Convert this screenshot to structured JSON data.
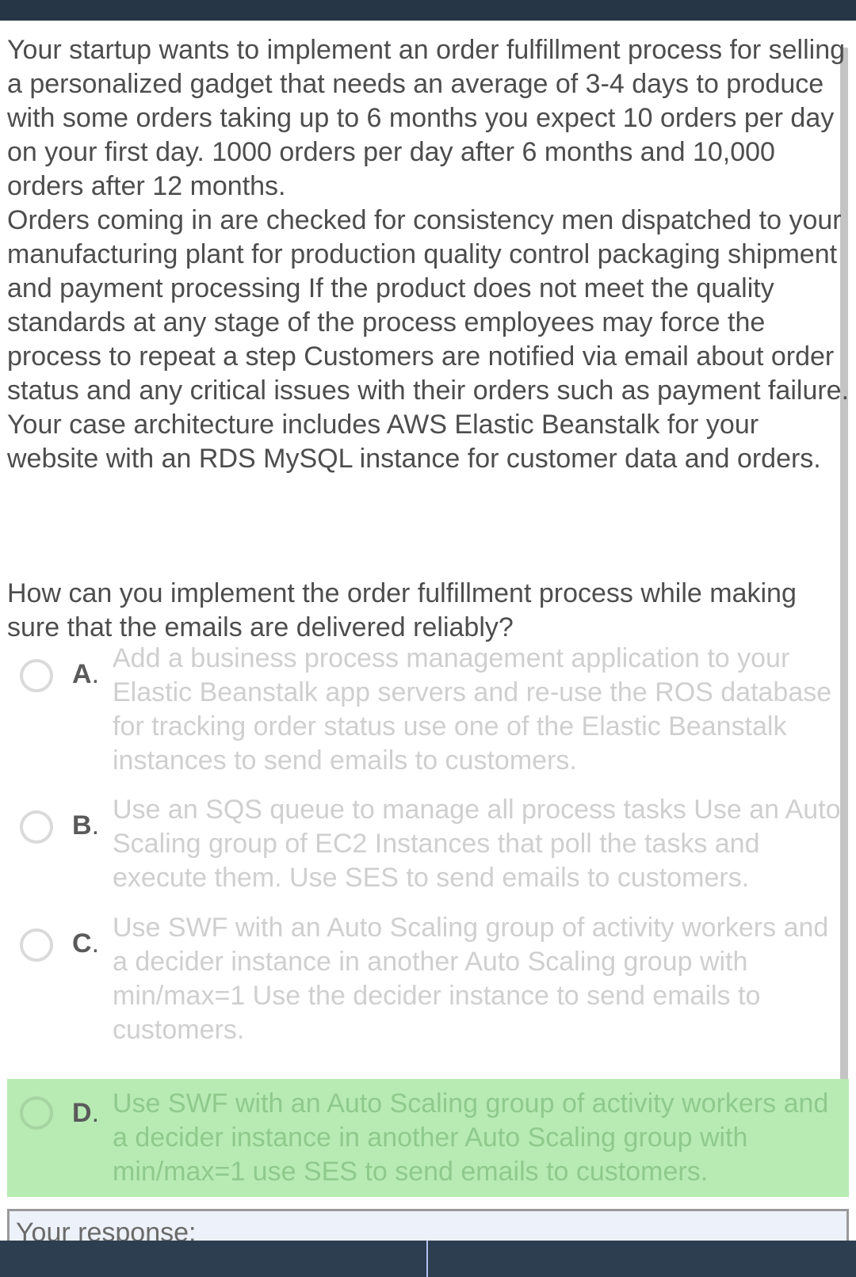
{
  "question": {
    "paragraph_1": "Your startup wants to implement an order fulfillment process for selling a personalized gadget that needs an average of 3-4 days to produce with some orders taking up to 6 months you expect 10 orders per day on your first day. 1000 orders per day after 6 months and 10,000 orders after 12 months.",
    "paragraph_2": "Orders coming in are checked for consistency men dispatched to your manufacturing plant for production quality control packaging shipment and payment processing If the product does not meet the quality standards at any stage of the process employees may force the process to repeat a step Customers are notified via email about order status and any critical issues with their orders such as payment failure.",
    "paragraph_3": "Your case architecture includes AWS Elastic Beanstalk for your website with an RDS MySQL instance for customer data and orders.",
    "prompt": "How can you implement the order fulfillment process while making sure that the emails are delivered reliably?"
  },
  "options": [
    {
      "letter": "A",
      "text": "Add a business process management application to your Elastic Beanstalk app servers and re-use the ROS database for tracking order status use one of the Elastic Beanstalk instances to send emails to customers."
    },
    {
      "letter": "B",
      "text": "Use an SQS queue to manage all process tasks Use an Auto Scaling group of EC2 Instances that poll the tasks and execute them. Use SES to send emails to customers."
    },
    {
      "letter": "C",
      "text": "Use SWF with an Auto Scaling group of activity workers and a decider instance in another Auto Scaling group with min/max=1 Use the decider instance to send emails to customers."
    },
    {
      "letter": "D",
      "text": "Use SWF with an Auto Scaling group of activity workers and a decider instance in another Auto Scaling group with min/max=1 use SES to send emails to customers."
    }
  ],
  "correct_option": "D",
  "response": {
    "label": "Your response:"
  },
  "colors": {
    "header_bar": "#273646",
    "footer_bar": "#2c3e50",
    "correct_highlight": "#b7ebb3",
    "option_text": "#cfcfcf",
    "body_text": "#4d4d4d"
  }
}
